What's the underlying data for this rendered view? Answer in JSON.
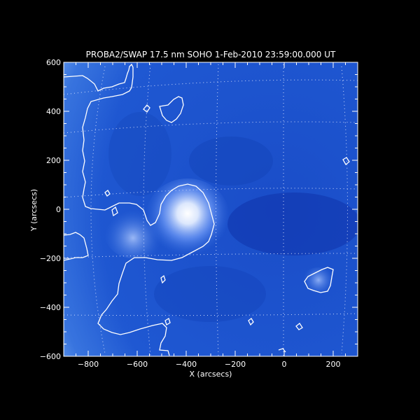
{
  "chart_data": {
    "type": "heatmap",
    "title": "PROBA2/SWAP 17.5 nm SOHO  1-Feb-2010 23:59:00.000 UT",
    "xlabel": "X (arcsecs)",
    "ylabel": "Y (arcsecs)",
    "xlim": [
      -900,
      300
    ],
    "ylim": [
      -600,
      600
    ],
    "x_ticks": [
      -800,
      -600,
      -400,
      -200,
      0,
      200
    ],
    "y_ticks": [
      -600,
      -400,
      -200,
      0,
      200,
      400,
      600
    ],
    "x_tick_labels": [
      "−800",
      "−600",
      "−400",
      "−200",
      "0",
      "200"
    ],
    "y_tick_labels": [
      "−600",
      "−400",
      "−200",
      "0",
      "200",
      "400",
      "600"
    ],
    "colors": {
      "background": "#000000",
      "disk_base": "#1e55d0",
      "disk_dark": "#0d2fa8",
      "bright": "#ffffff",
      "contour": "#ffffff",
      "grid": "#dfe6ff"
    }
  }
}
